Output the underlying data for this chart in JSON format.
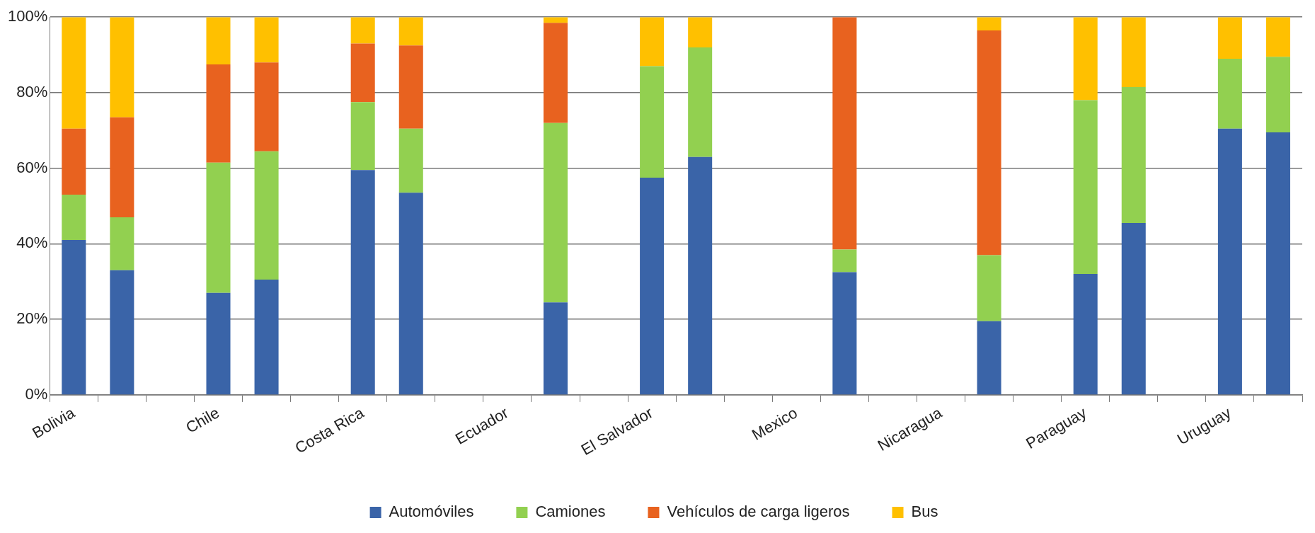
{
  "chart_data": {
    "type": "bar",
    "stacked": true,
    "categories": [
      "Bolivia",
      null,
      null,
      "Chile",
      null,
      null,
      "Costa Rica",
      null,
      null,
      "Ecuador",
      null,
      null,
      "El Salvador",
      null,
      null,
      "Mexico",
      null,
      null,
      "Nicaragua",
      null,
      null,
      "Paraguay",
      null,
      null,
      "Uruguay",
      null
    ],
    "series": [
      {
        "name": "Automóviles",
        "color": "#3a64a8",
        "values": [
          41,
          33,
          null,
          27,
          30.5,
          null,
          59.5,
          53.5,
          null,
          null,
          24.5,
          null,
          57.5,
          63,
          null,
          null,
          32.5,
          null,
          null,
          19.5,
          null,
          32,
          45.5,
          null,
          70.5,
          69.5
        ]
      },
      {
        "name": "Camiones",
        "color": "#92d050",
        "values": [
          12,
          14,
          null,
          34.5,
          34,
          null,
          18,
          17,
          null,
          null,
          47.5,
          null,
          29.5,
          29,
          null,
          null,
          6,
          null,
          null,
          17.5,
          null,
          46,
          36,
          null,
          18.5,
          20
        ]
      },
      {
        "name": "Vehículos de carga ligeros",
        "color": "#e8621f",
        "values": [
          17.5,
          26.5,
          null,
          26,
          23.5,
          null,
          15.5,
          22,
          null,
          null,
          26.5,
          null,
          0,
          0,
          null,
          null,
          61.5,
          null,
          null,
          59.5,
          null,
          0,
          0,
          null,
          0,
          0
        ]
      },
      {
        "name": "Bus",
        "color": "#ffc000",
        "values": [
          29.5,
          26.5,
          null,
          12.5,
          12,
          null,
          7,
          7.5,
          null,
          null,
          1.5,
          null,
          13,
          8,
          null,
          null,
          0,
          null,
          null,
          3.5,
          null,
          22,
          18.5,
          null,
          11,
          10.5
        ]
      }
    ],
    "ylim": [
      0,
      100
    ],
    "yticks": [
      {
        "value": 0,
        "label": "0%"
      },
      {
        "value": 20,
        "label": "20%"
      },
      {
        "value": 40,
        "label": "40%"
      },
      {
        "value": 60,
        "label": "60%"
      },
      {
        "value": 80,
        "label": "80%"
      },
      {
        "value": 100,
        "label": "100%"
      }
    ],
    "grid": "y",
    "legend": "bottom"
  }
}
